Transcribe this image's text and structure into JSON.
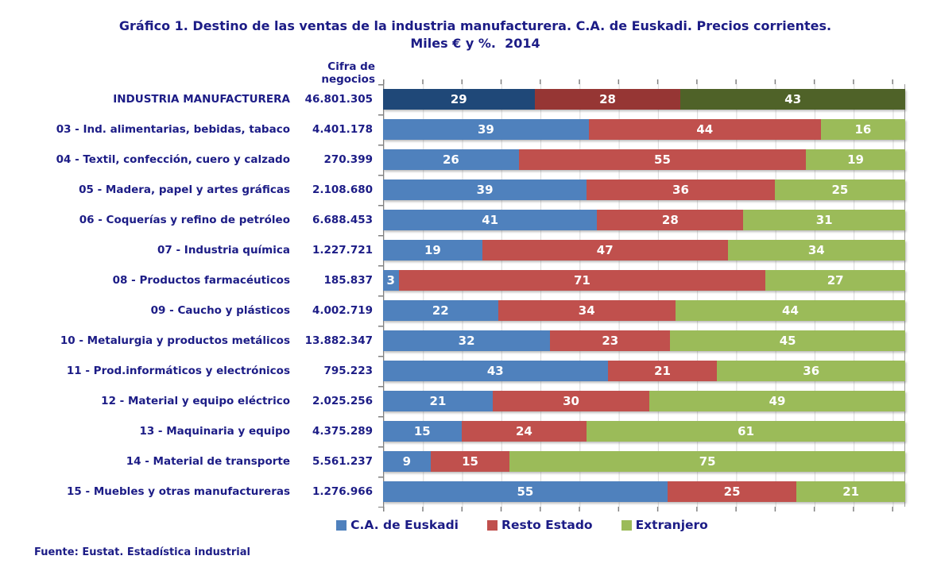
{
  "title": {
    "line1": "Gráfico 1. Destino de las ventas de la industria manufacturera. C.A. de Euskadi. Precios corrientes.",
    "line2": "Miles € y %.  2014"
  },
  "column_header": "Cifra de negocios",
  "footer": "Fuente: Eustat. Estadística industrial",
  "colors": {
    "series_light": [
      "#4F81BD",
      "#C0504D",
      "#9BBB59"
    ],
    "series_dark": [
      "#1F4878",
      "#963634",
      "#4F6228"
    ],
    "text_navy": "#1c1c86",
    "gridline": "#D9D9D9",
    "axis": "#808080"
  },
  "chart_data": {
    "type": "bar",
    "orientation": "horizontal",
    "stacked": true,
    "percent": true,
    "xlim": [
      0,
      100
    ],
    "grid": true,
    "legend_position": "bottom",
    "turnover_label": "Cifra de negocios",
    "categories": [
      "INDUSTRIA MANUFACTURERA",
      "03 - Ind. alimentarias, bebidas, tabaco",
      "04 - Textil, confección, cuero y calzado",
      "05 - Madera, papel y artes gráficas",
      "06 - Coquerías y refino de petróleo",
      "07 - Industria química",
      "08 - Productos farmacéuticos",
      "09 - Caucho y plásticos",
      "10 - Metalurgia y productos metálicos",
      "11 - Prod.informáticos y electrónicos",
      "12 - Material y equipo eléctrico",
      "13 - Maquinaria y equipo",
      "14 - Material de transporte",
      "15 - Muebles y otras manufactureras"
    ],
    "turnover": [
      "46.801.305",
      "4.401.178",
      "270.399",
      "2.108.680",
      "6.688.453",
      "1.227.721",
      "185.837",
      "4.002.719",
      "13.882.347",
      "795.223",
      "2.025.256",
      "4.375.289",
      "5.561.237",
      "1.276.966"
    ],
    "series": [
      {
        "name": "C.A. de Euskadi",
        "values": [
          29,
          39,
          26,
          39,
          41,
          19,
          3,
          22,
          32,
          43,
          21,
          15,
          9,
          55
        ]
      },
      {
        "name": "Resto Estado",
        "values": [
          28,
          44,
          55,
          36,
          28,
          47,
          71,
          34,
          23,
          21,
          30,
          24,
          15,
          25
        ]
      },
      {
        "name": "Extranjero",
        "values": [
          43,
          16,
          19,
          25,
          31,
          34,
          27,
          44,
          45,
          36,
          49,
          61,
          75,
          21
        ]
      }
    ],
    "emphasis_category_index": 0
  }
}
